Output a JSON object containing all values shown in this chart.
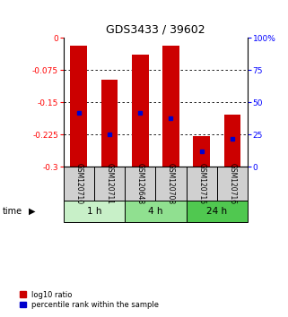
{
  "title": "GDS3433 / 39602",
  "samples": [
    "GSM120710",
    "GSM120711",
    "GSM120648",
    "GSM120708",
    "GSM120715",
    "GSM120716"
  ],
  "groups": [
    {
      "label": "1 h",
      "indices": [
        0,
        1
      ],
      "color": "#c8f0c8"
    },
    {
      "label": "4 h",
      "indices": [
        2,
        3
      ],
      "color": "#90e090"
    },
    {
      "label": "24 h",
      "indices": [
        4,
        5
      ],
      "color": "#50c850"
    }
  ],
  "log10_ratio_top": [
    -0.018,
    -0.098,
    -0.038,
    -0.018,
    -0.228,
    -0.178
  ],
  "log10_ratio_bottom": [
    -0.3,
    -0.3,
    -0.3,
    -0.3,
    -0.3,
    -0.3
  ],
  "percentile_rank": [
    0.42,
    0.25,
    0.42,
    0.38,
    0.12,
    0.22
  ],
  "ylim_left": [
    -0.3,
    0
  ],
  "ylim_right": [
    0,
    100
  ],
  "yticks_left": [
    0,
    -0.075,
    -0.15,
    -0.225,
    -0.3
  ],
  "ytick_labels_left": [
    "0",
    "-0.075",
    "-0.15",
    "-0.225",
    "-0.3"
  ],
  "yticks_right": [
    0,
    25,
    50,
    75,
    100
  ],
  "ytick_labels_right": [
    "0",
    "25",
    "50",
    "75",
    "100%"
  ],
  "bar_color": "#cc0000",
  "dot_color": "#0000cc",
  "legend_bar_label": "log10 ratio",
  "legend_dot_label": "percentile rank within the sample",
  "time_label": "time",
  "bg_color_samples": "#d0d0d0"
}
